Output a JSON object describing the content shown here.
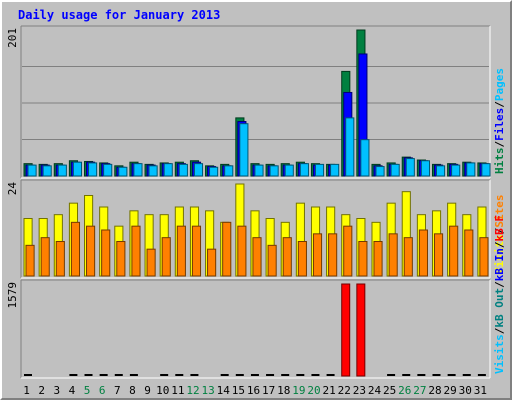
{
  "chart_data": {
    "type": "bar",
    "title": "Daily usage for January 2013",
    "days": [
      "1",
      "2",
      "3",
      "4",
      "5",
      "6",
      "7",
      "8",
      "9",
      "10",
      "11",
      "12",
      "13",
      "14",
      "15",
      "16",
      "17",
      "18",
      "19",
      "20",
      "21",
      "22",
      "23",
      "24",
      "25",
      "26",
      "27",
      "28",
      "29",
      "30",
      "31"
    ],
    "weekend_days": [
      "5",
      "6",
      "12",
      "13",
      "19",
      "20",
      "26",
      "27"
    ],
    "colors": {
      "hits": "#008040",
      "files": "#0000ff",
      "pages": "#00c0ff",
      "visits": "#ffff00",
      "sites": "#ff8000",
      "kbin": "#0000ff",
      "kbout": "#008080",
      "kbf": "#ff0000",
      "weekday_label": "#000000",
      "weekend_label": "#008040"
    },
    "panels": [
      {
        "ymax": 201,
        "ymax_label": "201",
        "legend": [
          {
            "text": "Hits",
            "color": "#008040"
          },
          {
            "text": "/",
            "color": "#000000"
          },
          {
            "text": "Files",
            "color": "#0000ff"
          },
          {
            "text": "/",
            "color": "#000000"
          },
          {
            "text": "Pages",
            "color": "#00c0ff"
          }
        ],
        "series": [
          {
            "name": "Hits",
            "color": "#008040",
            "values": [
              17,
              16,
              17,
              21,
              20,
              18,
              14,
              19,
              16,
              18,
              19,
              21,
              14,
              16,
              80,
              17,
              16,
              17,
              19,
              17,
              16,
              144,
              201,
              16,
              18,
              26,
              22,
              16,
              17,
              19,
              18
            ]
          },
          {
            "name": "Files",
            "color": "#0000ff",
            "values": [
              15,
              15,
              15,
              19,
              19,
              17,
              12,
              17,
              15,
              17,
              17,
              19,
              13,
              14,
              75,
              15,
              14,
              15,
              17,
              15,
              15,
              115,
              168,
              14,
              16,
              25,
              21,
              15,
              16,
              18,
              17
            ]
          },
          {
            "name": "Pages",
            "color": "#00c0ff",
            "values": [
              15,
              14,
              15,
              19,
              18,
              16,
              12,
              17,
              14,
              17,
              16,
              17,
              12,
              14,
              72,
              15,
              14,
              15,
              17,
              16,
              16,
              80,
              50,
              13,
              16,
              24,
              21,
              14,
              15,
              18,
              17
            ]
          }
        ]
      },
      {
        "ymax": 24,
        "ymax_label": "24",
        "legend": [
          {
            "text": "Visits",
            "color": "#ffff00"
          },
          {
            "text": "/",
            "color": "#000000"
          },
          {
            "text": "Sites",
            "color": "#ff8000"
          }
        ],
        "series": [
          {
            "name": "Visits",
            "color": "#ffff00",
            "values": [
              15,
              15,
              16,
              19,
              21,
              18,
              13,
              17,
              16,
              16,
              18,
              18,
              17,
              14,
              24,
              17,
              15,
              14,
              19,
              18,
              18,
              16,
              15,
              14,
              19,
              22,
              16,
              17,
              19,
              16,
              18
            ]
          },
          {
            "name": "Sites",
            "color": "#ff8000",
            "values": [
              8,
              10,
              9,
              14,
              13,
              12,
              9,
              13,
              7,
              10,
              13,
              13,
              7,
              14,
              13,
              10,
              8,
              10,
              9,
              11,
              11,
              13,
              9,
              9,
              11,
              10,
              12,
              11,
              13,
              12,
              10
            ]
          }
        ]
      },
      {
        "ymax": 1579,
        "ymax_label": "1579",
        "legend": [
          {
            "text": "Visits",
            "color": "#00c0ff"
          },
          {
            "text": "/",
            "color": "#000000"
          },
          {
            "text": "kB Out",
            "color": "#008080"
          },
          {
            "text": "/",
            "color": "#000000"
          },
          {
            "text": "kB In",
            "color": "#0000ff"
          },
          {
            "text": "/",
            "color": "#000000"
          },
          {
            "text": "kB F",
            "color": "#ff0000"
          }
        ],
        "series": [
          {
            "name": "kB F",
            "color": "#ff0000",
            "values": [
              20,
              0,
              0,
              20,
              20,
              20,
              20,
              20,
              0,
              20,
              20,
              20,
              0,
              20,
              20,
              20,
              20,
              20,
              20,
              20,
              20,
              1579,
              1579,
              0,
              20,
              20,
              20,
              20,
              20,
              20,
              20
            ]
          }
        ]
      }
    ]
  }
}
